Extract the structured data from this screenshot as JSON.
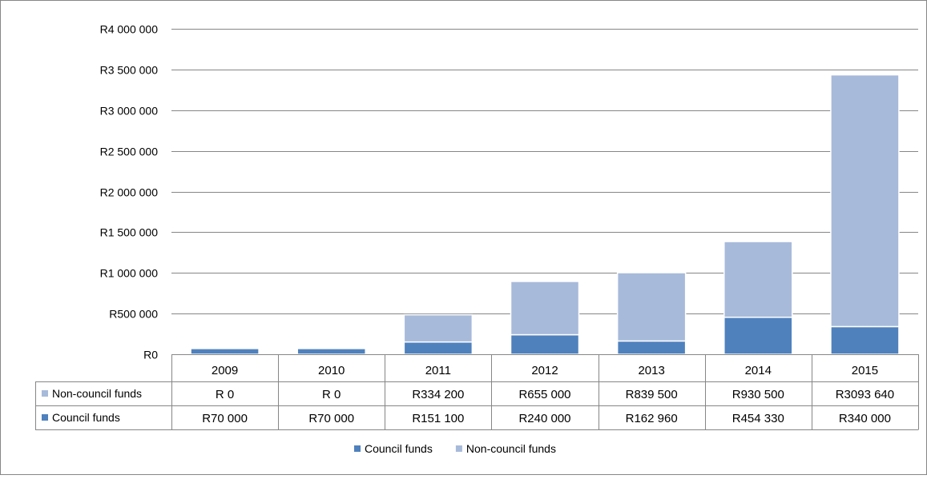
{
  "chart_data": {
    "type": "bar",
    "stacked": true,
    "categories": [
      "2009",
      "2010",
      "2011",
      "2012",
      "2013",
      "2014",
      "2015"
    ],
    "series": [
      {
        "name": "Council funds",
        "color": "#4F81BD",
        "values": [
          70000,
          70000,
          151100,
          240000,
          162960,
          454330,
          340000
        ],
        "table_labels": [
          "R70 000",
          "R70 000",
          "R151 100",
          "R240 000",
          "R162 960",
          "R454 330",
          "R340 000"
        ]
      },
      {
        "name": "Non-council funds",
        "color": "#A7BADA",
        "values": [
          0,
          0,
          334200,
          655000,
          839500,
          930500,
          3093640
        ],
        "table_labels": [
          "R 0",
          "R 0",
          "R334 200",
          "R655 000",
          "R839 500",
          "R930 500",
          "R3093 640"
        ]
      }
    ],
    "ylim": [
      0,
      4000000
    ],
    "y_ticks": [
      0,
      500000,
      1000000,
      1500000,
      2000000,
      2500000,
      3000000,
      3500000,
      4000000
    ],
    "y_tick_labels": [
      "R0",
      "R500 000",
      "R1 000 000",
      "R1 500 000",
      "R2 000 000",
      "R2 500 000",
      "R3 000 000",
      "R3 500 000",
      "R4 000 000"
    ],
    "grid": true,
    "data_table": true,
    "data_table_row_order": [
      "Non-council funds",
      "Council funds"
    ],
    "legend": {
      "position": "bottom",
      "entries": [
        "Council funds",
        "Non-council funds"
      ]
    }
  }
}
